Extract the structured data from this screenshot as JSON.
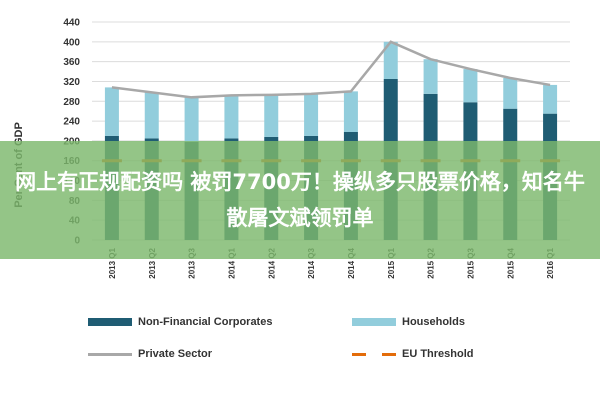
{
  "chart_data": {
    "type": "bar",
    "stacked": true,
    "categories": [
      "2013 Q1",
      "2013 Q2",
      "2013 Q3",
      "2014 Q1",
      "2014 Q2",
      "2014 Q3",
      "2014 Q4",
      "2015 Q1",
      "2015 Q2",
      "2015 Q3",
      "2015 Q4",
      "2016 Q1"
    ],
    "series": [
      {
        "name": "Non-Financial Corporates",
        "values": [
          210,
          205,
          198,
          205,
          208,
          210,
          218,
          325,
          295,
          278,
          265,
          255
        ],
        "color": "#1f5c73"
      },
      {
        "name": "Households",
        "values": [
          98,
          93,
          90,
          87,
          85,
          85,
          82,
          75,
          70,
          67,
          62,
          58
        ],
        "color": "#92cddc"
      }
    ],
    "lines": [
      {
        "name": "Private Sector",
        "values": [
          308,
          298,
          288,
          292,
          293,
          295,
          300,
          400,
          365,
          345,
          327,
          313
        ],
        "color": "#a8a8a8",
        "style": "solid"
      },
      {
        "name": "EU Threshold",
        "values": [
          160,
          160,
          160,
          160,
          160,
          160,
          160,
          160,
          160,
          160,
          160,
          160
        ],
        "color": "#e36c0a",
        "style": "dashed"
      }
    ],
    "ylabel": "Per Cent of GDP",
    "ylim": [
      0,
      440
    ],
    "yticks": [
      0,
      40,
      80,
      120,
      160,
      200,
      240,
      280,
      320,
      360,
      400,
      440
    ],
    "grid": true,
    "legend_placement": "bottom"
  },
  "legend": {
    "items": [
      {
        "label": "Non-Financial Corporates",
        "kind": "box",
        "color": "#1f5c73"
      },
      {
        "label": "Households",
        "kind": "box",
        "color": "#92cddc"
      },
      {
        "label": "Private Sector",
        "kind": "line",
        "color": "#a8a8a8"
      },
      {
        "label": "EU Threshold",
        "kind": "dash",
        "color": "#e36c0a"
      }
    ]
  },
  "banner": {
    "text": "网上有正规配资吗 被罚7700万！操纵多只股票价格，知名牛散屠文斌领罚单"
  }
}
